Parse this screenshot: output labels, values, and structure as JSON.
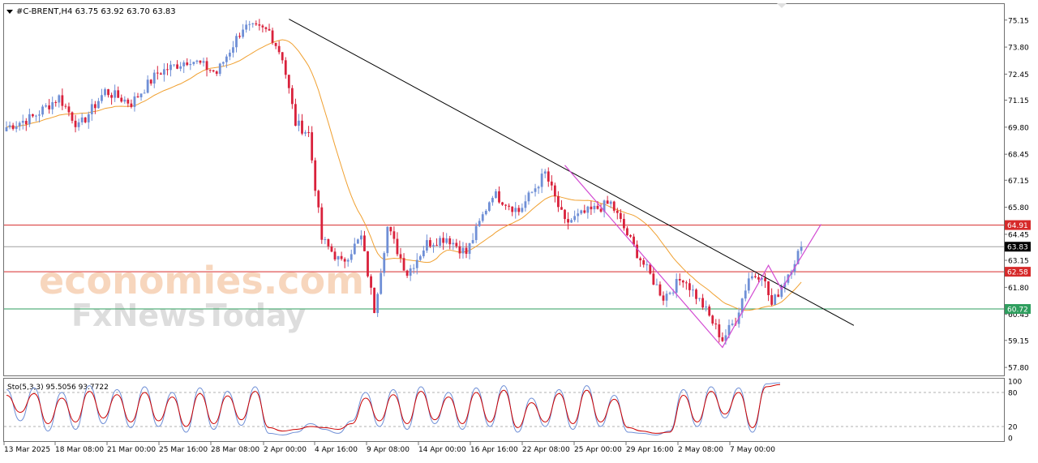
{
  "window": {
    "symbol_line": "#C-BRENT,H4  63.75 63.92 63.70 63.83",
    "collapse_glyph": "triangle-down-icon"
  },
  "watermarks": {
    "brand1": "economies.com",
    "brand2": "FxNewsToday"
  },
  "indicator": {
    "label": "Sto(5,3,3) 95.5056 93.7722",
    "levels": [
      "100",
      "80",
      "20",
      "0"
    ],
    "main_color": "#6f8fd6",
    "signal_color": "#cc0000"
  },
  "colors": {
    "bull": "#6f8fd6",
    "bear": "#d9213b",
    "ma": "#f0a030",
    "trendline": "#000000",
    "channel": "#d24bd2",
    "resistance_line": "#d62a2a",
    "support_line": "#2e9e5e",
    "price_line": "#a0a0a0"
  },
  "chart_data": {
    "type": "candlestick",
    "symbol": "#C-BRENT",
    "timeframe": "H4",
    "ohlc_header": {
      "open": 63.75,
      "high": 63.92,
      "low": 63.7,
      "close": 63.83
    },
    "ylim": [
      57.4,
      75.95
    ],
    "y_ticks": [
      "75.15",
      "73.80",
      "72.45",
      "71.15",
      "69.80",
      "68.45",
      "67.15",
      "65.80",
      "64.45",
      "63.15",
      "61.80",
      "60.45",
      "59.15",
      "57.80"
    ],
    "x_ticks": [
      "13 Mar 2025",
      "18 Mar 08:00",
      "21 Mar 00:00",
      "25 Mar 16:00",
      "28 Mar 08:00",
      "2 Apr 00:00",
      "4 Apr 16:00",
      "9 Apr 08:00",
      "14 Apr 00:00",
      "16 Apr 16:00",
      "22 Apr 08:00",
      "25 Apr 00:00",
      "29 Apr 16:00",
      "2 May 08:00",
      "7 May 00:00"
    ],
    "price_labels": [
      {
        "value": "64.91",
        "kind": "resistance"
      },
      {
        "value": "63.83",
        "kind": "current"
      },
      {
        "value": "62.58",
        "kind": "resistance2"
      },
      {
        "value": "60.72",
        "kind": "support"
      }
    ],
    "anchors": [
      {
        "i": 0,
        "v": 69.8
      },
      {
        "i": 8,
        "v": 70.3
      },
      {
        "i": 16,
        "v": 71.3
      },
      {
        "i": 22,
        "v": 69.8
      },
      {
        "i": 30,
        "v": 71.6
      },
      {
        "i": 38,
        "v": 71.0
      },
      {
        "i": 46,
        "v": 72.5
      },
      {
        "i": 56,
        "v": 73.2
      },
      {
        "i": 64,
        "v": 72.5
      },
      {
        "i": 72,
        "v": 74.8
      },
      {
        "i": 80,
        "v": 74.6
      },
      {
        "i": 84,
        "v": 73.3
      },
      {
        "i": 88,
        "v": 70.0
      },
      {
        "i": 92,
        "v": 69.5
      },
      {
        "i": 96,
        "v": 64.2
      },
      {
        "i": 102,
        "v": 63.0
      },
      {
        "i": 108,
        "v": 64.3
      },
      {
        "i": 112,
        "v": 60.7
      },
      {
        "i": 116,
        "v": 64.8
      },
      {
        "i": 122,
        "v": 62.5
      },
      {
        "i": 128,
        "v": 64.0
      },
      {
        "i": 134,
        "v": 64.3
      },
      {
        "i": 140,
        "v": 63.5
      },
      {
        "i": 148,
        "v": 66.5
      },
      {
        "i": 156,
        "v": 65.6
      },
      {
        "i": 164,
        "v": 67.5
      },
      {
        "i": 170,
        "v": 65.0
      },
      {
        "i": 176,
        "v": 65.5
      },
      {
        "i": 184,
        "v": 66.0
      },
      {
        "i": 192,
        "v": 63.5
      },
      {
        "i": 200,
        "v": 61.3
      },
      {
        "i": 206,
        "v": 62.3
      },
      {
        "i": 212,
        "v": 60.9
      },
      {
        "i": 218,
        "v": 59.2
      },
      {
        "i": 222,
        "v": 60.2
      },
      {
        "i": 226,
        "v": 62.3
      },
      {
        "i": 230,
        "v": 62.5
      },
      {
        "i": 233,
        "v": 60.9
      },
      {
        "i": 238,
        "v": 62.5
      },
      {
        "i": 242,
        "v": 63.83
      }
    ],
    "annotations": {
      "trendline": [
        {
          "i": 86,
          "v": 75.2
        },
        {
          "i": 258,
          "v": 59.9
        }
      ],
      "channel": [
        {
          "i": 170,
          "v": 67.9
        },
        {
          "i": 218,
          "v": 58.8
        },
        {
          "i": 232,
          "v": 62.9
        },
        {
          "i": 236,
          "v": 61.7
        },
        {
          "i": 248,
          "v": 64.95
        }
      ],
      "sto_main": [
        85,
        30,
        88,
        12,
        80,
        15,
        92,
        25,
        85,
        18,
        90,
        20,
        80,
        10,
        88,
        15,
        82,
        22,
        90,
        8,
        5,
        10,
        25,
        15,
        8,
        30,
        80,
        20,
        85,
        15,
        90,
        25,
        80,
        15,
        88,
        20,
        92,
        10,
        70,
        20,
        85,
        15,
        92,
        20,
        75,
        10,
        8,
        5,
        12,
        85,
        20,
        90,
        35,
        88,
        10,
        95,
        97
      ],
      "sto_signal": [
        75,
        45,
        78,
        25,
        70,
        28,
        82,
        35,
        76,
        28,
        80,
        30,
        72,
        20,
        78,
        25,
        74,
        32,
        82,
        18,
        12,
        15,
        20,
        18,
        15,
        25,
        70,
        30,
        76,
        25,
        82,
        32,
        72,
        25,
        80,
        28,
        84,
        18,
        62,
        28,
        78,
        25,
        84,
        28,
        68,
        18,
        12,
        8,
        10,
        75,
        28,
        82,
        42,
        80,
        18,
        90,
        94
      ]
    }
  }
}
